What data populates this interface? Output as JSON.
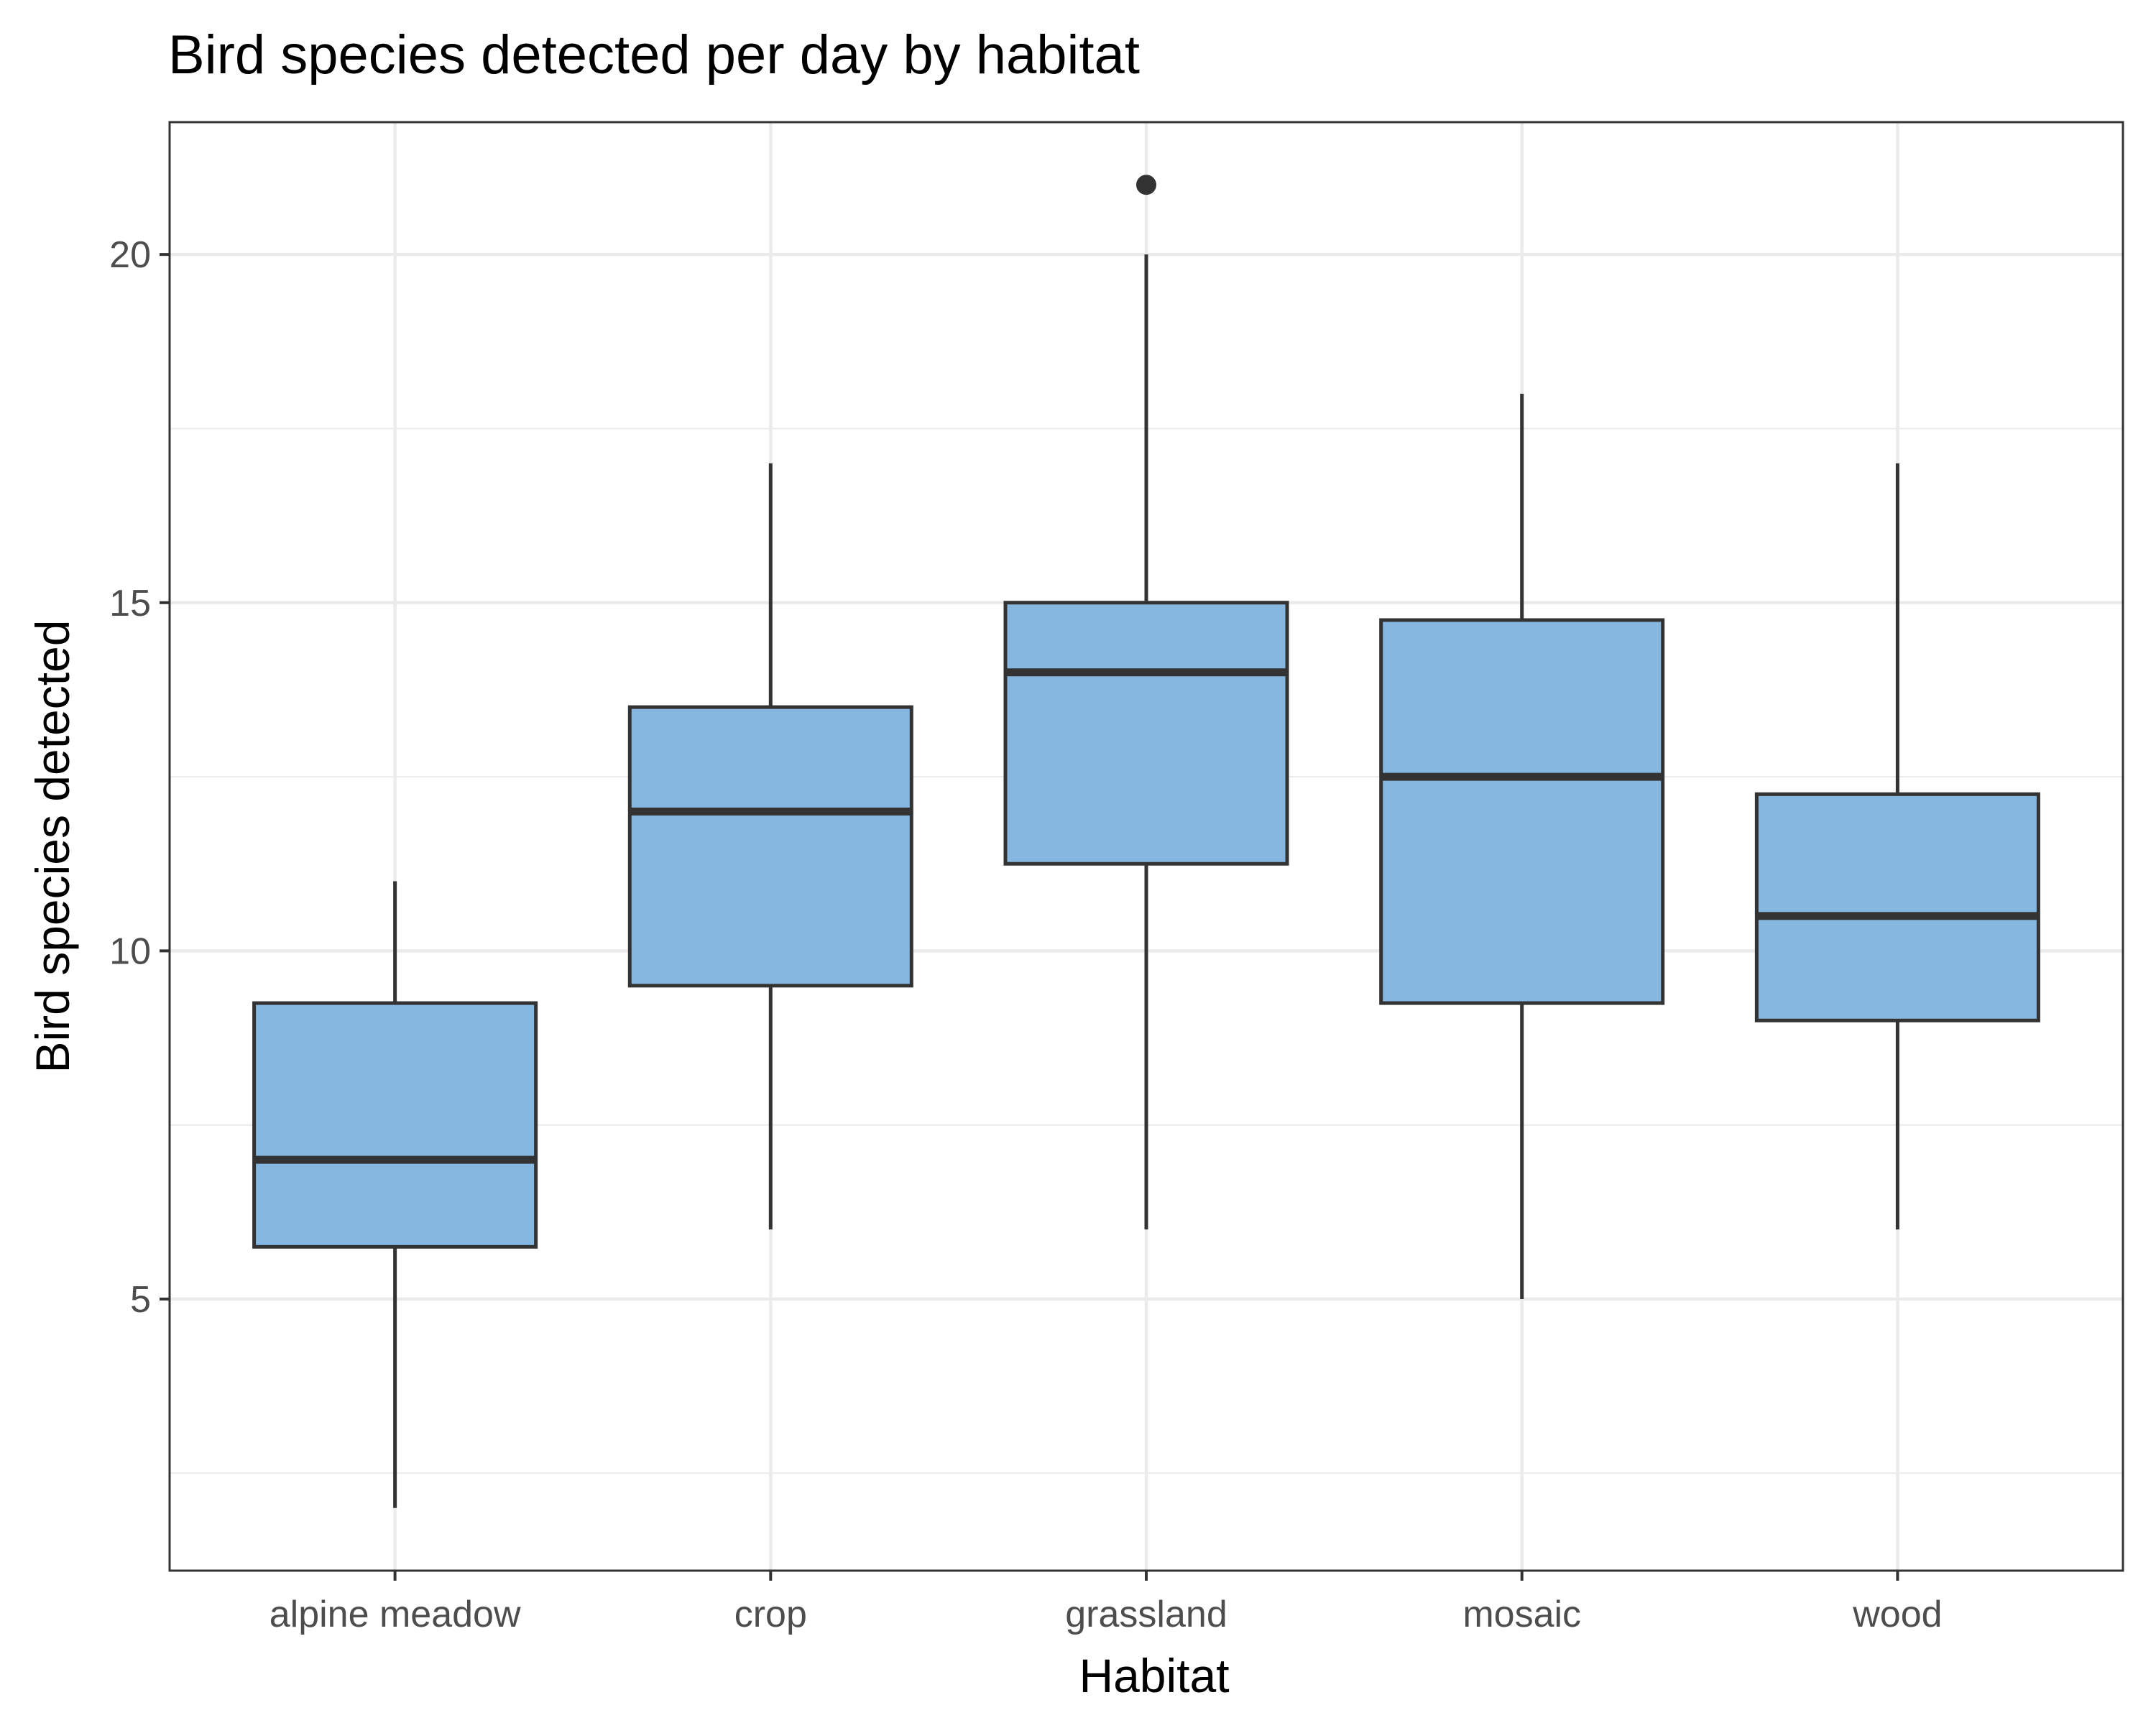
{
  "chart_data": {
    "type": "box",
    "title": "Bird species detected per day by habitat",
    "xlabel": "Habitat",
    "ylabel": "Bird species detected",
    "categories": [
      "alpine meadow",
      "crop",
      "grassland",
      "mosaic",
      "wood"
    ],
    "boxes": [
      {
        "category": "alpine meadow",
        "whisker_low": 2,
        "q1": 5.75,
        "median": 7,
        "q3": 9.25,
        "whisker_high": 11,
        "outliers": []
      },
      {
        "category": "crop",
        "whisker_low": 6,
        "q1": 9.5,
        "median": 12,
        "q3": 13.5,
        "whisker_high": 17,
        "outliers": []
      },
      {
        "category": "grassland",
        "whisker_low": 6,
        "q1": 11.25,
        "median": 14,
        "q3": 15,
        "whisker_high": 20,
        "outliers": [
          21
        ]
      },
      {
        "category": "mosaic",
        "whisker_low": 5,
        "q1": 9.25,
        "median": 12.5,
        "q3": 14.75,
        "whisker_high": 18,
        "outliers": []
      },
      {
        "category": "wood",
        "whisker_low": 6,
        "q1": 9,
        "median": 10.5,
        "q3": 12.25,
        "whisker_high": 17,
        "outliers": []
      }
    ],
    "y_ticks": [
      5,
      10,
      15,
      20
    ],
    "ylim": [
      1.1,
      21.9
    ],
    "grid": true,
    "box_fill": "#85b7e0",
    "line_color": "#333333",
    "grid_color": "#ebebeb"
  }
}
